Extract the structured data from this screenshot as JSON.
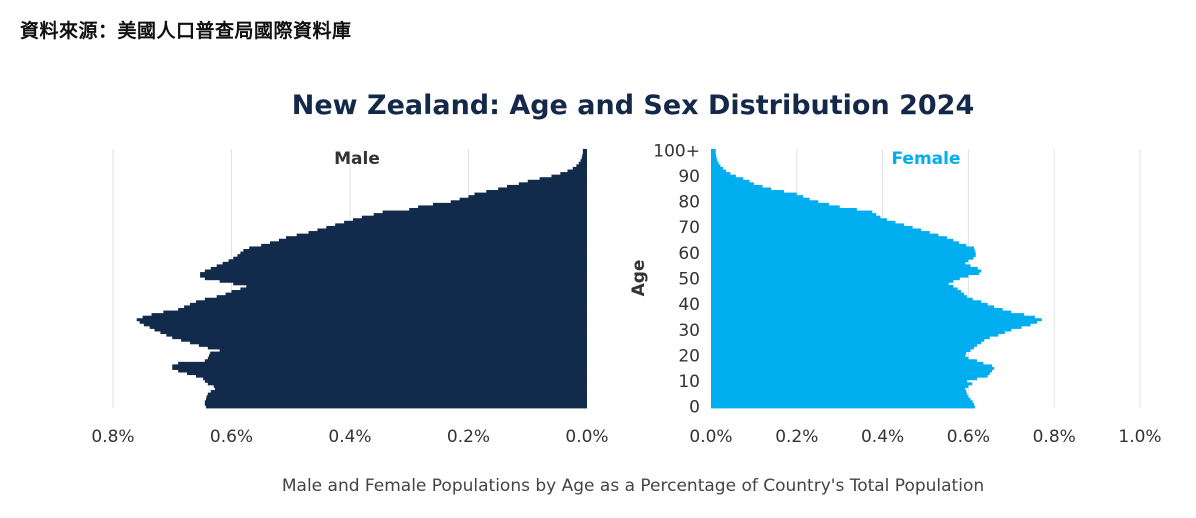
{
  "source_note": "資料來源：美國人口普查局國際資料庫",
  "chart_data": {
    "type": "bar",
    "subtype": "population-pyramid",
    "title": "New Zealand: Age and Sex Distribution 2024",
    "xlabel": "Male and Female Populations by Age as a Percentage of Country's Total Population",
    "ylabel": "Age",
    "ages": [
      0,
      1,
      2,
      3,
      4,
      5,
      6,
      7,
      8,
      9,
      10,
      11,
      12,
      13,
      14,
      15,
      16,
      17,
      18,
      19,
      20,
      21,
      22,
      23,
      24,
      25,
      26,
      27,
      28,
      29,
      30,
      31,
      32,
      33,
      34,
      35,
      36,
      37,
      38,
      39,
      40,
      41,
      42,
      43,
      44,
      45,
      46,
      47,
      48,
      49,
      50,
      51,
      52,
      53,
      54,
      55,
      56,
      57,
      58,
      59,
      60,
      61,
      62,
      63,
      64,
      65,
      66,
      67,
      68,
      69,
      70,
      71,
      72,
      73,
      74,
      75,
      76,
      77,
      78,
      79,
      80,
      81,
      82,
      83,
      84,
      85,
      86,
      87,
      88,
      89,
      90,
      91,
      92,
      93,
      94,
      95,
      96,
      97,
      98,
      99,
      "100+"
    ],
    "y_ticks": [
      "0",
      "10",
      "20",
      "30",
      "40",
      "50",
      "60",
      "70",
      "80",
      "90",
      "100+"
    ],
    "male_ticks": [
      "0.8%",
      "0.6%",
      "0.4%",
      "0.2%",
      "0.0%"
    ],
    "female_ticks": [
      "0.0%",
      "0.2%",
      "0.4%",
      "0.6%",
      "0.8%",
      "1.0%"
    ],
    "male_xlim": [
      0,
      0.8
    ],
    "female_xlim": [
      0,
      1.0
    ],
    "grid": true,
    "series": [
      {
        "name": "Male",
        "color": "#122a4b",
        "values": [
          0.643,
          0.645,
          0.645,
          0.643,
          0.642,
          0.64,
          0.635,
          0.628,
          0.63,
          0.64,
          0.645,
          0.648,
          0.66,
          0.675,
          0.69,
          0.7,
          0.7,
          0.69,
          0.645,
          0.64,
          0.638,
          0.636,
          0.62,
          0.64,
          0.655,
          0.67,
          0.685,
          0.7,
          0.71,
          0.72,
          0.73,
          0.738,
          0.748,
          0.755,
          0.76,
          0.75,
          0.735,
          0.715,
          0.69,
          0.68,
          0.67,
          0.66,
          0.645,
          0.625,
          0.61,
          0.6,
          0.585,
          0.575,
          0.597,
          0.62,
          0.645,
          0.653,
          0.653,
          0.645,
          0.635,
          0.625,
          0.615,
          0.605,
          0.597,
          0.59,
          0.585,
          0.58,
          0.57,
          0.55,
          0.535,
          0.52,
          0.508,
          0.49,
          0.47,
          0.455,
          0.44,
          0.425,
          0.41,
          0.395,
          0.38,
          0.36,
          0.345,
          0.3,
          0.285,
          0.26,
          0.23,
          0.215,
          0.2,
          0.19,
          0.17,
          0.15,
          0.135,
          0.115,
          0.1,
          0.08,
          0.06,
          0.045,
          0.033,
          0.024,
          0.018,
          0.014,
          0.011,
          0.009,
          0.008,
          0.007,
          0.007
        ]
      },
      {
        "name": "Female",
        "color": "#00aeef",
        "values": [
          0.615,
          0.613,
          0.61,
          0.605,
          0.6,
          0.597,
          0.595,
          0.593,
          0.6,
          0.609,
          0.597,
          0.62,
          0.645,
          0.65,
          0.655,
          0.66,
          0.655,
          0.635,
          0.62,
          0.6,
          0.593,
          0.595,
          0.605,
          0.613,
          0.62,
          0.63,
          0.637,
          0.65,
          0.67,
          0.685,
          0.7,
          0.724,
          0.745,
          0.76,
          0.771,
          0.755,
          0.73,
          0.7,
          0.68,
          0.66,
          0.645,
          0.63,
          0.61,
          0.597,
          0.59,
          0.583,
          0.575,
          0.565,
          0.554,
          0.565,
          0.58,
          0.6,
          0.625,
          0.63,
          0.622,
          0.605,
          0.593,
          0.6,
          0.612,
          0.617,
          0.617,
          0.615,
          0.613,
          0.595,
          0.578,
          0.565,
          0.55,
          0.53,
          0.51,
          0.49,
          0.47,
          0.45,
          0.43,
          0.41,
          0.395,
          0.385,
          0.376,
          0.34,
          0.3,
          0.275,
          0.25,
          0.23,
          0.215,
          0.2,
          0.17,
          0.14,
          0.12,
          0.1,
          0.09,
          0.075,
          0.058,
          0.045,
          0.035,
          0.028,
          0.022,
          0.018,
          0.015,
          0.013,
          0.012,
          0.011,
          0.011
        ]
      }
    ]
  }
}
